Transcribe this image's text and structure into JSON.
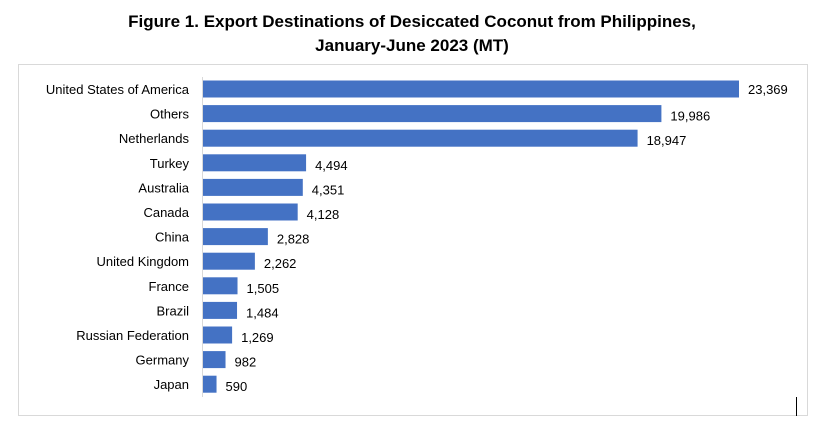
{
  "chart_data": {
    "type": "bar",
    "orientation": "horizontal",
    "title": "Figure 1. Export Destinations of Desiccated Coconut from Philippines,",
    "subtitle": "January-June 2023 (MT)",
    "xlabel": "",
    "ylabel": "",
    "categories": [
      "United States of America",
      "Others",
      "Netherlands",
      "Turkey",
      "Australia",
      "Canada",
      "China",
      "United Kingdom",
      "France",
      "Brazil",
      "Russian Federation",
      "Germany",
      "Japan"
    ],
    "values": [
      23369,
      19986,
      18947,
      4494,
      4351,
      4128,
      2828,
      2262,
      1505,
      1484,
      1269,
      982,
      590
    ],
    "data_labels": [
      "23,369",
      "19,986",
      "18,947",
      "4,494",
      "4,351",
      "4,128",
      "2,828",
      "2,262",
      "1,505",
      "1,484",
      "1,269",
      "982",
      "590"
    ],
    "xlim": [
      0,
      23369
    ],
    "grid": false,
    "legend": "none",
    "bar_color": "#4472C4"
  }
}
